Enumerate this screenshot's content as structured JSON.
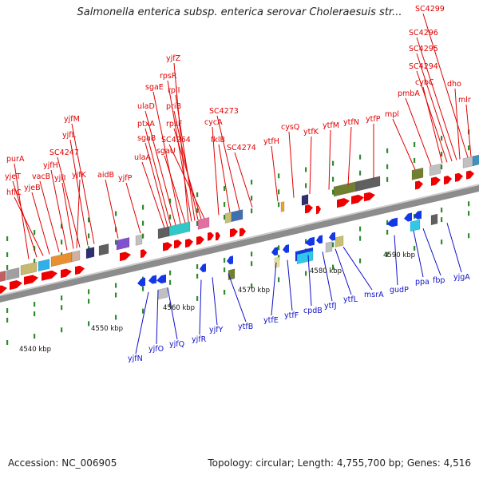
{
  "title": "Salmonella enterica subsp. enterica serovar Choleraesuis str...",
  "footer": {
    "accession": "Accession: NC_006905",
    "summary": "Topology: circular; Length: 4,755,700 bp; Genes: 4,516"
  },
  "colors": {
    "forward_gene_label": "#e00000",
    "reverse_gene_label": "#1010c8",
    "forward_arrow": "#ee0000",
    "reverse_arrow": "#1438e6",
    "backbone": "#8a8a8a"
  },
  "scale_ticks": [
    "4540 kbp",
    "4550 kbp",
    "4560 kbp",
    "4570 kbp",
    "4580 kbp",
    "4590 kbp"
  ],
  "forward_labels": [
    "purA",
    "yjeT",
    "hflC",
    "yjeB",
    "vacB",
    "yjfH",
    "yjfI",
    "SC4247",
    "yjfL",
    "yjfM",
    "yjfK",
    "aidB",
    "yjfP",
    "ulaA",
    "sgaB",
    "ptxA",
    "ulaD",
    "sgaE",
    "sgaU",
    "yjfZ",
    "rpsR",
    "rplI",
    "priB",
    "rpsF",
    "SC4264",
    "cycA",
    "fklB",
    "SC4273",
    "SC4274",
    "ytfH",
    "cysQ",
    "ytfK",
    "ytfM",
    "ytfN",
    "ytfP",
    "mpl",
    "pmbA",
    "cybC",
    "SC4294",
    "SC4295",
    "SC4296",
    "SC4299",
    "dho",
    "mlr"
  ],
  "reverse_labels": [
    "yjfN",
    "yjfO",
    "yjfQ",
    "yjfR",
    "yjfY",
    "ytfB",
    "ytfE",
    "ytfF",
    "cpdB",
    "ytfJ",
    "ytfL",
    "msrA",
    "gudP",
    "ppa",
    "fbp",
    "yjgA"
  ]
}
